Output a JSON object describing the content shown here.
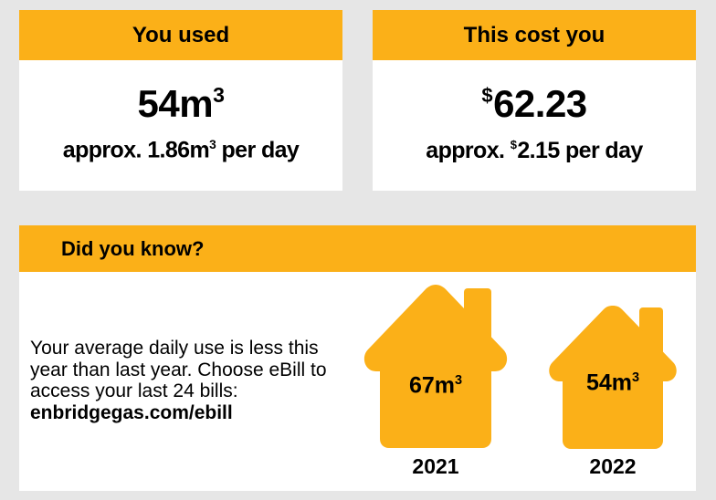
{
  "colors": {
    "accent": "#fbb018",
    "background": "#e6e6e6",
    "card": "#ffffff",
    "text": "#000000"
  },
  "usage": {
    "header": "You used",
    "value": "54m",
    "value_unit_sup": "3",
    "daily_prefix": "approx. 1.86m",
    "daily_unit_sup": "3",
    "daily_suffix": " per day"
  },
  "cost": {
    "header": "This cost you",
    "currency": "$",
    "value": "62.23",
    "daily_prefix": "approx. ",
    "daily_currency": "$",
    "daily_value": "2.15 per day"
  },
  "did_you_know": {
    "header": "Did you know?",
    "body": "Your average daily use is less this year than last year. Choose eBill to access your last 24 bills:",
    "link": "enbridgegas.com/ebill",
    "houses": [
      {
        "icon": "house-icon",
        "value": "67m",
        "unit_sup": "3",
        "year": "2021"
      },
      {
        "icon": "house-icon",
        "value": "54m",
        "unit_sup": "3",
        "year": "2022"
      }
    ]
  }
}
